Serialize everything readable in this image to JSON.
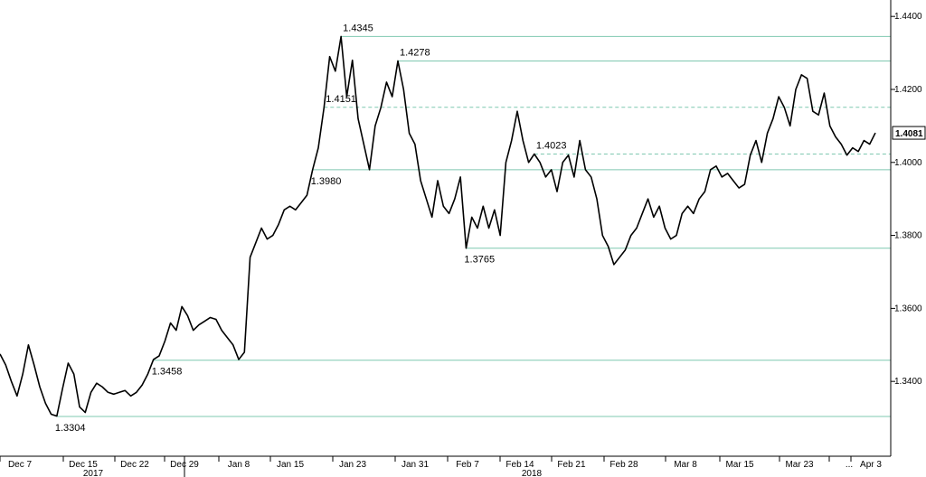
{
  "chart_data": {
    "type": "line",
    "title": "",
    "xlabel": "",
    "ylabel": "",
    "ylim": [
      1.3195,
      1.4445
    ],
    "y_ticks": [
      {
        "value": 1.34,
        "label": "1.3400"
      },
      {
        "value": 1.36,
        "label": "1.3600"
      },
      {
        "value": 1.38,
        "label": "1.3800"
      },
      {
        "value": 1.4,
        "label": "1.4000"
      },
      {
        "value": 1.42,
        "label": "1.4200"
      },
      {
        "value": 1.44,
        "label": "1.4400"
      }
    ],
    "x_ticks": [
      "Dec 7",
      "Dec 15",
      "Dec 22",
      "Dec 29",
      "Jan 8",
      "Jan 15",
      "Jan 23",
      "Jan 31",
      "Feb 7",
      "Feb 14",
      "Feb 21",
      "Feb 28",
      "Mar 8",
      "Mar 15",
      "Mar 23",
      "...",
      "Apr 3"
    ],
    "year_labels": [
      "2017",
      "2018"
    ],
    "last_value": {
      "value": 1.4081,
      "label": "1.4081"
    },
    "series": [
      {
        "values": [
          1.3475,
          1.3445,
          1.34,
          1.336,
          1.342,
          1.35,
          1.3445,
          1.3385,
          1.334,
          1.331,
          1.3305,
          1.338,
          1.345,
          1.342,
          1.333,
          1.3315,
          1.337,
          1.3395,
          1.3385,
          1.337,
          1.3365,
          1.337,
          1.3375,
          1.336,
          1.337,
          1.339,
          1.342,
          1.346,
          1.347,
          1.351,
          1.356,
          1.354,
          1.3605,
          1.358,
          1.354,
          1.3555,
          1.3565,
          1.3575,
          1.357,
          1.354,
          1.352,
          1.35,
          1.346,
          1.348,
          1.374,
          1.378,
          1.382,
          1.379,
          1.38,
          1.383,
          1.387,
          1.388,
          1.387,
          1.389,
          1.391,
          1.398,
          1.404,
          1.415,
          1.429,
          1.425,
          1.4345,
          1.418,
          1.428,
          1.412,
          1.405,
          1.398,
          1.41,
          1.415,
          1.422,
          1.418,
          1.4278,
          1.42,
          1.408,
          1.405,
          1.395,
          1.39,
          1.385,
          1.395,
          1.388,
          1.386,
          1.39,
          1.396,
          1.3765,
          1.385,
          1.382,
          1.388,
          1.382,
          1.387,
          1.38,
          1.4,
          1.406,
          1.414,
          1.406,
          1.4,
          1.4023,
          1.4,
          1.396,
          1.398,
          1.392,
          1.4,
          1.402,
          1.396,
          1.406,
          1.398,
          1.396,
          1.39,
          1.38,
          1.377,
          1.372,
          1.374,
          1.376,
          1.38,
          1.382,
          1.386,
          1.39,
          1.385,
          1.388,
          1.382,
          1.379,
          1.38,
          1.386,
          1.388,
          1.386,
          1.39,
          1.392,
          1.398,
          1.399,
          1.396,
          1.397,
          1.395,
          1.393,
          1.394,
          1.402,
          1.406,
          1.4,
          1.408,
          1.412,
          1.418,
          1.415,
          1.41,
          1.42,
          1.424,
          1.423,
          1.414,
          1.413,
          1.419,
          1.41,
          1.407,
          1.405,
          1.402,
          1.404,
          1.403,
          1.406,
          1.405,
          1.4081
        ]
      }
    ],
    "levels": [
      {
        "value": 1.4345,
        "label": "1.4345",
        "style": "solid"
      },
      {
        "value": 1.4278,
        "label": "1.4278",
        "style": "solid"
      },
      {
        "value": 1.4151,
        "label": "1.4151",
        "style": "dashed"
      },
      {
        "value": 1.4023,
        "label": "1.4023",
        "style": "dashed"
      },
      {
        "value": 1.398,
        "label": "1.3980",
        "style": "solid"
      },
      {
        "value": 1.3765,
        "label": "1.3765",
        "style": "solid"
      },
      {
        "value": 1.3458,
        "label": "1.3458",
        "style": "solid"
      },
      {
        "value": 1.3304,
        "label": "1.3304",
        "style": "solid"
      }
    ],
    "grid": false,
    "line_color": "#000000",
    "level_color": "#7fc8b0"
  }
}
